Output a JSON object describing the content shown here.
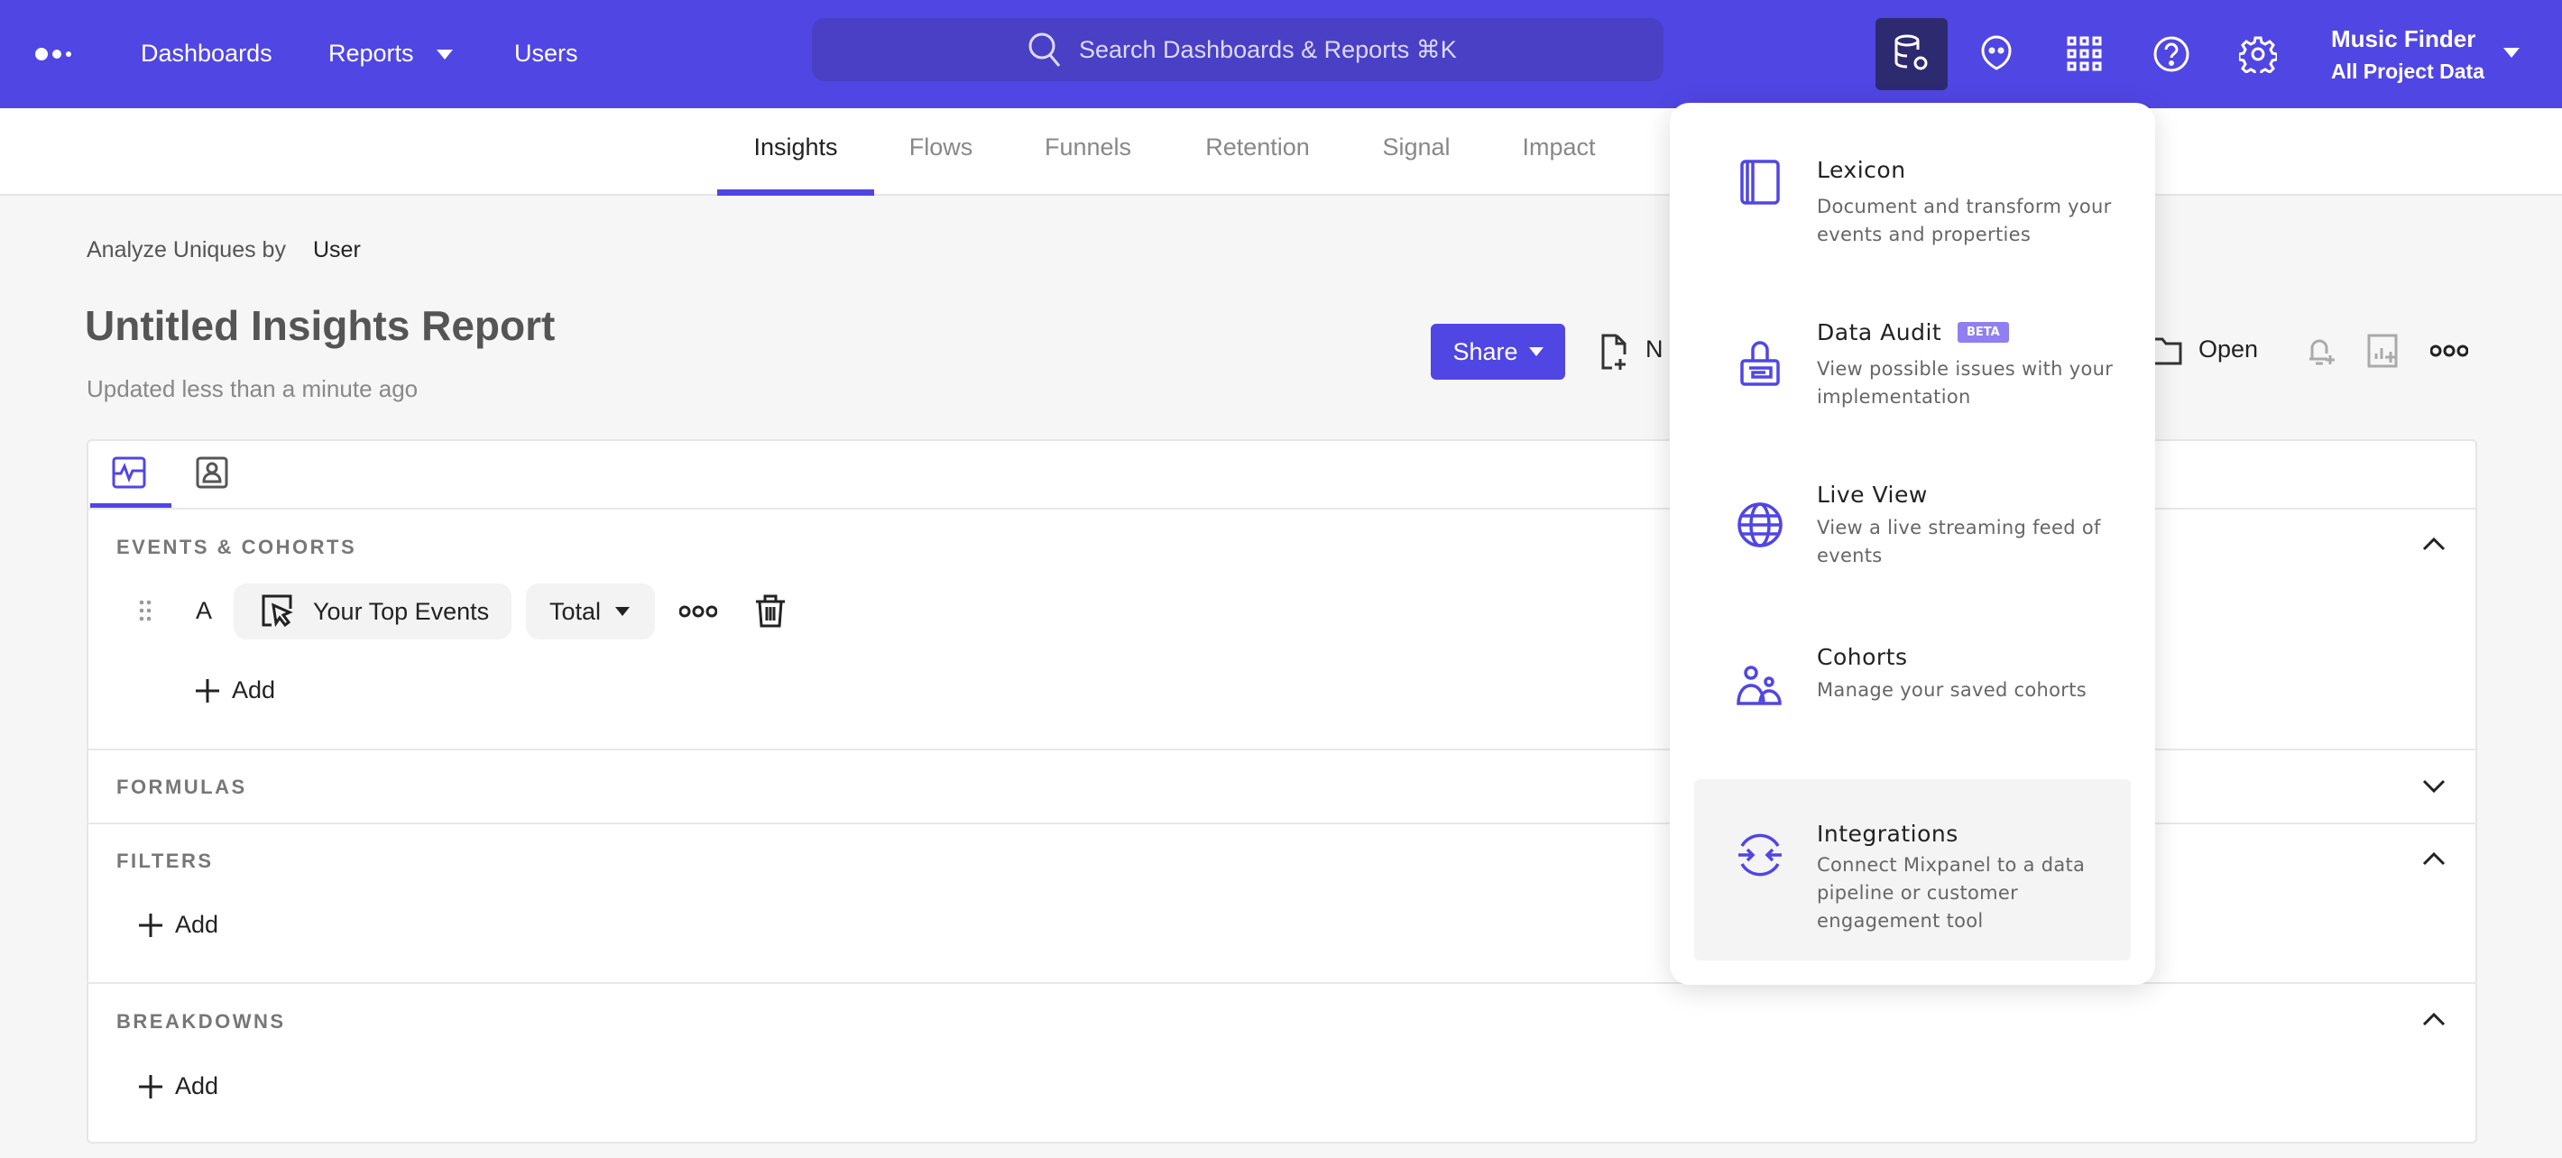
{
  "navbar": {
    "items": [
      {
        "label": "Dashboards"
      },
      {
        "label": "Reports"
      },
      {
        "label": "Users"
      }
    ],
    "search_placeholder": "Search Dashboards & Reports ⌘K",
    "project_name": "Music Finder",
    "project_scope": "All Project Data",
    "icons": [
      "data-management-icon",
      "chat-icon",
      "apps-grid-icon",
      "help-icon",
      "settings-icon"
    ],
    "brand_color": "#5046e4"
  },
  "subnav": {
    "tabs": [
      {
        "label": "Insights",
        "active": true
      },
      {
        "label": "Flows"
      },
      {
        "label": "Funnels"
      },
      {
        "label": "Retention"
      },
      {
        "label": "Signal"
      },
      {
        "label": "Impact"
      }
    ]
  },
  "report": {
    "analyze_prefix": "Analyze Uniques by",
    "analyze_value": "User",
    "title": "Untitled Insights Report",
    "updated": "Updated less than a minute ago",
    "share_label": "Share",
    "new_label": "N",
    "open_label": "Open"
  },
  "query": {
    "events_label": "EVENTS & COHORTS",
    "row_letter": "A",
    "event_name": "Your Top Events",
    "measure": "Total",
    "add_label": "Add",
    "formulas_label": "FORMULAS",
    "filters_label": "FILTERS",
    "breakdowns_label": "BREAKDOWNS"
  },
  "menu": {
    "items": [
      {
        "title": "Lexicon",
        "desc": "Document and transform your events and properties"
      },
      {
        "title": "Data Audit",
        "badge": "BETA",
        "desc": "View possible issues with your implementation"
      },
      {
        "title": "Live View",
        "desc": "View a live streaming feed of events"
      },
      {
        "title": "Cohorts",
        "desc": "Manage your saved cohorts"
      },
      {
        "title": "Integrations",
        "desc": "Connect Mixpanel to a data pipeline or customer engagement tool",
        "highlighted": true
      }
    ]
  }
}
